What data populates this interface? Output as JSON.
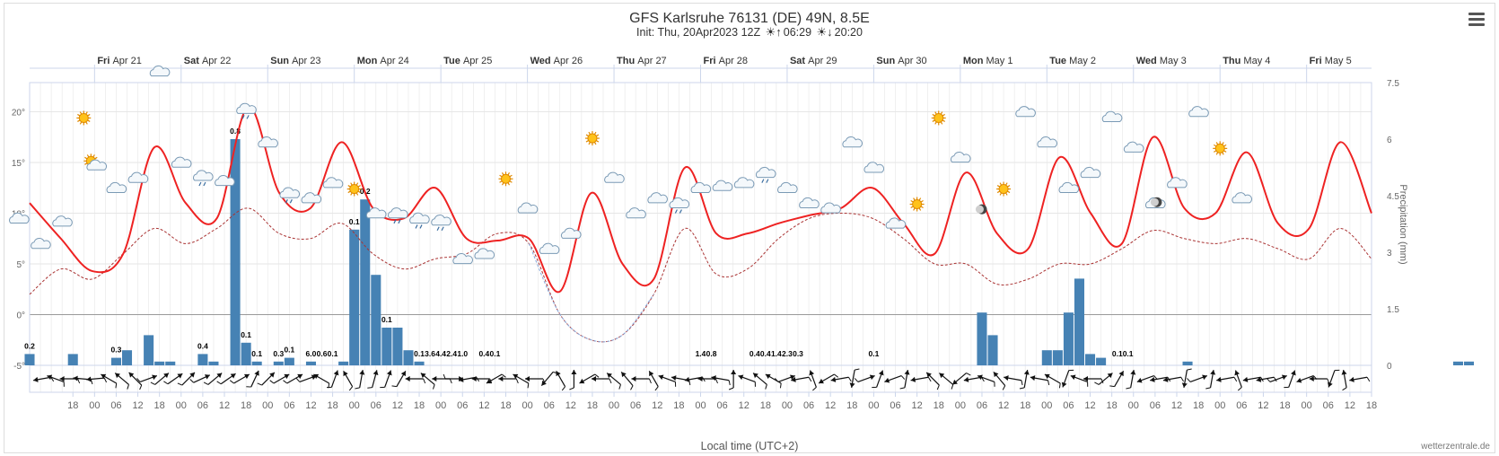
{
  "title": "GFS Karlsruhe 76131 (DE) 49N, 8.5E",
  "subtitle": {
    "init": "Init: Thu, 20Apr2023 12Z",
    "sunrise": "06:29",
    "sunset": "20:20"
  },
  "xlabel": "Local time (UTC+2)",
  "credits": "wetterzentrale.de",
  "colors": {
    "temperature": "#ee2222",
    "dewpoint": "#aa3333",
    "dewpoint_below_zero": "#88aadd",
    "precipitation": "#4682b4",
    "grid": "#e6e6e6"
  },
  "chart_data": {
    "type": "line",
    "time_step_hours": 6,
    "time_start": "Thu Apr 20 18:00",
    "date_labels": [
      {
        "day": "Fri",
        "date": "Apr 21"
      },
      {
        "day": "Sat",
        "date": "Apr 22"
      },
      {
        "day": "Sun",
        "date": "Apr 23"
      },
      {
        "day": "Mon",
        "date": "Apr 24"
      },
      {
        "day": "Tue",
        "date": "Apr 25"
      },
      {
        "day": "Wed",
        "date": "Apr 26"
      },
      {
        "day": "Thu",
        "date": "Apr 27"
      },
      {
        "day": "Fri",
        "date": "Apr 28"
      },
      {
        "day": "Sat",
        "date": "Apr 29"
      },
      {
        "day": "Sun",
        "date": "Apr 30"
      },
      {
        "day": "Mon",
        "date": "May 1"
      },
      {
        "day": "Tue",
        "date": "May 2"
      },
      {
        "day": "Wed",
        "date": "May 3"
      },
      {
        "day": "Thu",
        "date": "May 4"
      },
      {
        "day": "Fri",
        "date": "May 5"
      }
    ],
    "hour_labels": [
      "18",
      "00",
      "06",
      "12",
      "18",
      "00",
      "06",
      "12",
      "18",
      "00",
      "06",
      "12",
      "18",
      "00",
      "06",
      "12",
      "18",
      "00",
      "06",
      "12",
      "18",
      "00",
      "06",
      "12",
      "18",
      "00",
      "06",
      "12",
      "18",
      "00",
      "06",
      "12",
      "18",
      "00",
      "06",
      "12",
      "18",
      "00",
      "06",
      "12",
      "18",
      "00",
      "06",
      "12",
      "18",
      "00",
      "06",
      "12",
      "18",
      "00",
      "06",
      "12",
      "18",
      "00",
      "06",
      "12",
      "18",
      "00",
      "06",
      "12",
      "18"
    ],
    "y_left": {
      "unit": "°",
      "ticks": [
        -5,
        0,
        5,
        10,
        15,
        20
      ],
      "range": [
        -5,
        25
      ]
    },
    "y_right": {
      "label": "Precipitation (mm)",
      "ticks": [
        "0",
        "1.5",
        "3",
        "4.5",
        "6",
        "7.5"
      ],
      "range": [
        0,
        7.5
      ]
    },
    "series": [
      {
        "name": "Temperature",
        "values": [
          11,
          7.5,
          4.3,
          6,
          16.5,
          11,
          9.5,
          20.5,
          12,
          10.5,
          17,
          10.5,
          9.5,
          12.5,
          7.5,
          7.3,
          7.5,
          2.3,
          12,
          5,
          3.5,
          14.5,
          8,
          8,
          9,
          9.8,
          10.5,
          12.5,
          9,
          6,
          14,
          8,
          6.5,
          15.5,
          10,
          7,
          17.5,
          10.5,
          10,
          16,
          9,
          8.5,
          17,
          10
        ]
      },
      {
        "name": "Dew point",
        "values": [
          2,
          4.5,
          3.5,
          6,
          8.5,
          7,
          8.5,
          10.5,
          8,
          7.5,
          9,
          6,
          4.5,
          5.5,
          6,
          8,
          7,
          0,
          -2.5,
          -2,
          2,
          8.5,
          4,
          4.5,
          7.5,
          9.5,
          10,
          9.5,
          7.5,
          5,
          5,
          3,
          3.5,
          5,
          5,
          6.5,
          8.3,
          7.5,
          7,
          7.5,
          6.5,
          5.5,
          8.5,
          5.5
        ]
      },
      {
        "name": "Precipitation",
        "unit": "mm",
        "values": [
          0,
          0.3,
          0,
          0,
          0,
          0.3,
          0,
          0,
          0,
          0.2,
          0.4,
          0,
          0.8,
          0.1,
          0.1,
          0,
          0,
          0.3,
          0.1,
          0,
          6,
          0.6,
          0.1,
          0,
          0.1,
          0.2,
          0,
          0.1,
          0,
          0,
          0.1,
          3.6,
          4.4,
          2.4,
          1.0,
          1.0,
          0.4,
          0.1,
          0,
          0,
          0,
          0,
          0,
          0,
          0,
          0,
          0,
          0,
          0,
          0,
          0,
          0,
          0,
          0,
          0,
          0,
          0,
          0,
          0,
          0,
          0,
          0,
          0,
          0,
          0,
          0,
          0,
          0,
          0,
          0,
          0,
          0,
          0,
          0,
          0,
          0,
          0,
          0,
          0,
          0,
          0,
          0,
          0,
          0,
          0,
          0,
          0,
          0,
          0,
          1.4,
          0.8,
          0,
          0,
          0,
          0,
          0.4,
          0.4,
          1.4,
          2.3,
          0.3,
          0.2,
          0,
          0,
          0,
          0,
          0,
          0,
          0,
          0.1,
          0,
          0,
          0,
          0,
          0,
          0,
          0,
          0,
          0,
          0,
          0,
          0,
          0,
          0,
          0,
          0,
          0,
          0,
          0,
          0,
          0,
          0,
          0,
          0,
          0.1,
          0.1,
          0,
          0,
          0,
          0,
          0,
          0,
          0,
          0,
          0,
          0
        ]
      }
    ],
    "precip_labels": [
      {
        "h": 6,
        "text": "0.2"
      },
      {
        "h": 30,
        "text": "0.3"
      },
      {
        "h": 54,
        "text": "0.4"
      },
      {
        "h": 63,
        "text": "0.8"
      },
      {
        "h": 66,
        "text": "0.1"
      },
      {
        "h": 69,
        "text": "0.1"
      },
      {
        "h": 75,
        "text": "0.3"
      },
      {
        "h": 78,
        "text": "0.1"
      },
      {
        "h": 84,
        "text": "6.0"
      },
      {
        "h": 87,
        "text": "0.6"
      },
      {
        "h": 90,
        "text": "0.1"
      },
      {
        "h": 96,
        "text": "0.1"
      },
      {
        "h": 99,
        "text": "0.2"
      },
      {
        "h": 105,
        "text": "0.1"
      },
      {
        "h": 114,
        "text": "0.1"
      },
      {
        "h": 117,
        "text": "3.6"
      },
      {
        "h": 120,
        "text": "4.4"
      },
      {
        "h": 123,
        "text": "2.4"
      },
      {
        "h": 126,
        "text": "1.0"
      },
      {
        "h": 132,
        "text": "0.4"
      },
      {
        "h": 135,
        "text": "0.1"
      },
      {
        "h": 192,
        "text": "1.4"
      },
      {
        "h": 195,
        "text": "0.8"
      },
      {
        "h": 207,
        "text": "0.4"
      },
      {
        "h": 210,
        "text": "0.4"
      },
      {
        "h": 213,
        "text": "1.4"
      },
      {
        "h": 216,
        "text": "2.3"
      },
      {
        "h": 219,
        "text": "0.3"
      },
      {
        "h": 240,
        "text": "0.1"
      },
      {
        "h": 309,
        "text": "0.10.1"
      }
    ],
    "weather_icons": [
      {
        "h": 3,
        "t": 8.5,
        "icon": "cloud"
      },
      {
        "h": 9,
        "t": 6,
        "icon": "cloud"
      },
      {
        "h": 15,
        "t": 8.2,
        "icon": "cloud"
      },
      {
        "h": 21,
        "t": 18.5,
        "icon": "sun"
      },
      {
        "h": 24,
        "t": 14,
        "icon": "sun-cloud-rain"
      },
      {
        "h": 30,
        "t": 11.5,
        "icon": "cloud"
      },
      {
        "h": 36,
        "t": 12.5,
        "icon": "cloud"
      },
      {
        "h": 42,
        "t": 23,
        "icon": "cloud"
      },
      {
        "h": 48,
        "t": 14,
        "icon": "cloud"
      },
      {
        "h": 54,
        "t": 12.7,
        "icon": "cloud-rain"
      },
      {
        "h": 60,
        "t": 12.2,
        "icon": "cloud"
      },
      {
        "h": 66,
        "t": 19.3,
        "icon": "cloud-rain"
      },
      {
        "h": 72,
        "t": 16,
        "icon": "cloud"
      },
      {
        "h": 78,
        "t": 11,
        "icon": "cloud-rain"
      },
      {
        "h": 84,
        "t": 10.5,
        "icon": "cloud"
      },
      {
        "h": 90,
        "t": 12,
        "icon": "cloud"
      },
      {
        "h": 96,
        "t": 11.5,
        "icon": "sun"
      },
      {
        "h": 102,
        "t": 9,
        "icon": "cloud"
      },
      {
        "h": 108,
        "t": 9,
        "icon": "cloud-rain"
      },
      {
        "h": 114,
        "t": 8.5,
        "icon": "cloud-rain"
      },
      {
        "h": 120,
        "t": 8.3,
        "icon": "cloud-rain"
      },
      {
        "h": 126,
        "t": 4.5,
        "icon": "cloud"
      },
      {
        "h": 132,
        "t": 5,
        "icon": "cloud"
      },
      {
        "h": 138,
        "t": 12.5,
        "icon": "sun"
      },
      {
        "h": 144,
        "t": 9.5,
        "icon": "cloud"
      },
      {
        "h": 150,
        "t": 5.5,
        "icon": "cloud"
      },
      {
        "h": 156,
        "t": 7,
        "icon": "cloud"
      },
      {
        "h": 162,
        "t": 16.5,
        "icon": "sun"
      },
      {
        "h": 168,
        "t": 12.5,
        "icon": "cloud"
      },
      {
        "h": 174,
        "t": 9,
        "icon": "cloud"
      },
      {
        "h": 180,
        "t": 10.5,
        "icon": "cloud"
      },
      {
        "h": 186,
        "t": 10,
        "icon": "cloud-rain"
      },
      {
        "h": 192,
        "t": 11.5,
        "icon": "cloud"
      },
      {
        "h": 198,
        "t": 11.7,
        "icon": "cloud"
      },
      {
        "h": 204,
        "t": 12,
        "icon": "cloud"
      },
      {
        "h": 210,
        "t": 13,
        "icon": "cloud-rain"
      },
      {
        "h": 216,
        "t": 11.5,
        "icon": "cloud"
      },
      {
        "h": 222,
        "t": 10,
        "icon": "cloud"
      },
      {
        "h": 228,
        "t": 9.5,
        "icon": "cloud"
      },
      {
        "h": 234,
        "t": 16,
        "icon": "cloud"
      },
      {
        "h": 240,
        "t": 13.5,
        "icon": "cloud"
      },
      {
        "h": 246,
        "t": 8,
        "icon": "cloud"
      },
      {
        "h": 252,
        "t": 10,
        "icon": "sun"
      },
      {
        "h": 258,
        "t": 18.5,
        "icon": "sun"
      },
      {
        "h": 264,
        "t": 14.5,
        "icon": "cloud"
      },
      {
        "h": 270,
        "t": 9.5,
        "icon": "moon"
      },
      {
        "h": 276,
        "t": 11.5,
        "icon": "sun"
      },
      {
        "h": 282,
        "t": 19,
        "icon": "cloud"
      },
      {
        "h": 288,
        "t": 16,
        "icon": "cloud"
      },
      {
        "h": 294,
        "t": 11.5,
        "icon": "cloud"
      },
      {
        "h": 300,
        "t": 13,
        "icon": "cloud"
      },
      {
        "h": 306,
        "t": 18.5,
        "icon": "cloud"
      },
      {
        "h": 312,
        "t": 15.5,
        "icon": "cloud"
      },
      {
        "h": 318,
        "t": 10,
        "icon": "cloud"
      },
      {
        "h": 324,
        "t": 12,
        "icon": "cloud"
      },
      {
        "h": 330,
        "t": 19,
        "icon": "cloud"
      },
      {
        "h": 336,
        "t": 15.5,
        "icon": "sun"
      },
      {
        "h": 342,
        "t": 10.5,
        "icon": "cloud"
      },
      {
        "h": 318.5,
        "t": 10.2,
        "icon": "moon"
      }
    ],
    "wind_directions_deg": [
      80,
      110,
      90,
      95,
      85,
      120,
      130,
      135,
      250,
      230,
      235,
      225,
      245,
      230,
      235,
      240,
      205,
      225,
      240,
      240,
      250,
      120,
      200,
      150,
      190,
      195,
      200,
      210,
      90,
      130,
      90,
      270,
      80,
      90,
      60,
      90,
      120,
      90,
      40,
      150,
      180,
      60,
      90,
      130,
      140,
      90,
      150,
      110,
      100,
      80,
      90,
      100,
      180,
      110,
      130,
      120,
      250,
      80,
      160,
      60,
      80,
      10,
      250,
      200,
      70,
      190,
      80,
      135,
      130,
      50,
      80,
      110,
      140,
      100,
      190,
      100,
      120,
      20,
      110,
      90,
      230,
      210,
      190,
      70,
      80,
      80,
      10,
      250,
      190,
      80,
      160,
      80,
      80,
      250,
      200,
      70,
      90,
      20,
      170,
      80
    ],
    "grid": true,
    "legend": "none"
  }
}
